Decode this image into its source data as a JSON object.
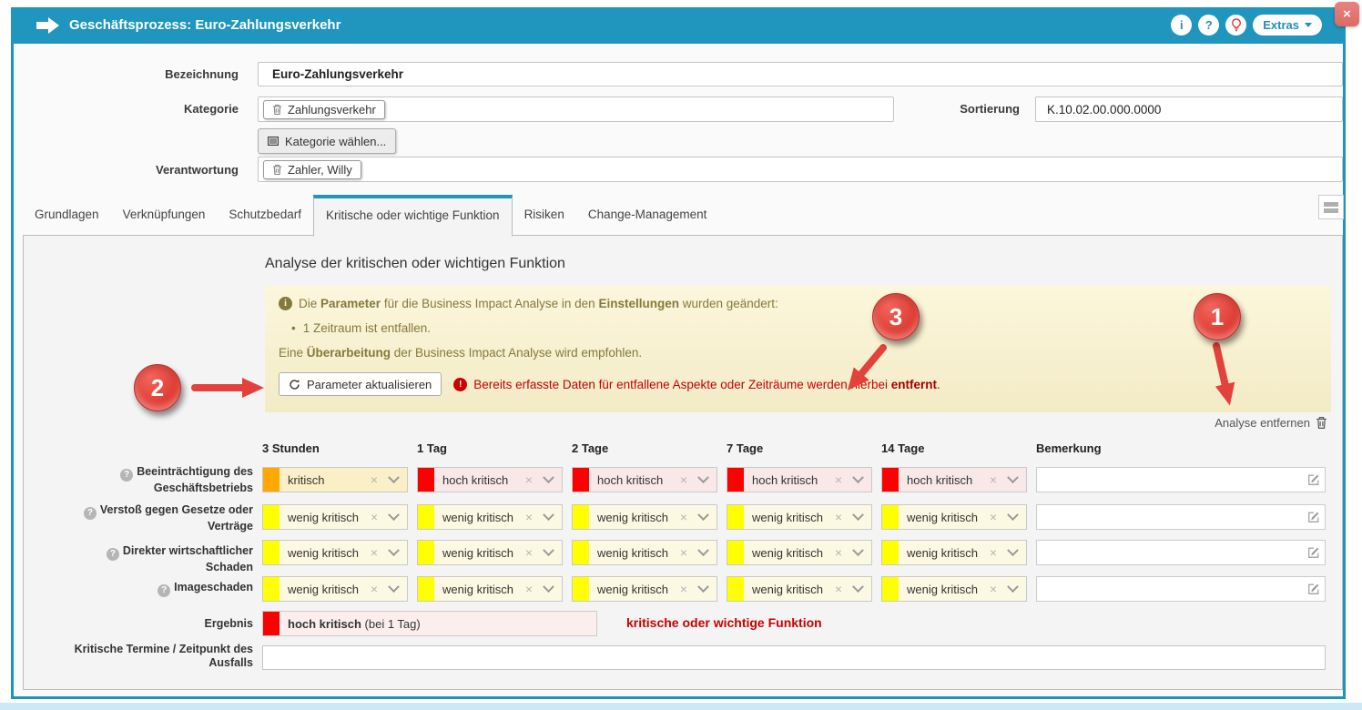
{
  "icons": {
    "info_glyph": "i",
    "question_glyph": "?",
    "warning_glyph": "!",
    "clear_glyph": "×"
  },
  "titlebar": {
    "title": "Geschäftsprozess: Euro-Zahlungsverkehr",
    "info_label": "i",
    "help_label": "?",
    "extras_label": "Extras",
    "close_label": "×"
  },
  "form": {
    "bezeichnung_label": "Bezeichnung",
    "bezeichnung_value": "Euro-Zahlungsverkehr",
    "kategorie_label": "Kategorie",
    "kategorie_tag": "Zahlungsverkehr",
    "kategorie_choose_label": "Kategorie wählen...",
    "sortierung_label": "Sortierung",
    "sortierung_value": "K.10.02.00.000.0000",
    "verantwortung_label": "Verantwortung",
    "verantwortung_tag": "Zahler, Willy"
  },
  "tabs": [
    {
      "label": "Grundlagen",
      "active": false
    },
    {
      "label": "Verknüpfungen",
      "active": false
    },
    {
      "label": "Schutzbedarf",
      "active": false
    },
    {
      "label": "Kritische oder wichtige Funktion",
      "active": true
    },
    {
      "label": "Risiken",
      "active": false
    },
    {
      "label": "Change-Management",
      "active": false
    }
  ],
  "analysis": {
    "section_title": "Analyse der kritischen oder wichtigen Funktion",
    "notice": {
      "intro": [
        {
          "t": "Die ",
          "b": false
        },
        {
          "t": "Parameter",
          "b": true
        },
        {
          "t": " für die Business Impact Analyse in den ",
          "b": false
        },
        {
          "t": "Einstellungen",
          "b": true
        },
        {
          "t": " wurden geändert:",
          "b": false
        }
      ],
      "bullet_item": "1 Zeitraum ist entfallen.",
      "recommendation": [
        {
          "t": "Eine ",
          "b": false
        },
        {
          "t": "Überarbeitung",
          "b": true
        },
        {
          "t": " der Business Impact Analyse wird empfohlen.",
          "b": false
        }
      ],
      "update_button_label": "Parameter aktualisieren",
      "warning": [
        {
          "t": "Bereits erfasste Daten für entfallene Aspekte oder Zeiträume werden hierbei ",
          "b": false
        },
        {
          "t": "entfernt",
          "b": true
        },
        {
          "t": ".",
          "b": false
        }
      ]
    },
    "remove_link_label": "Analyse entfernen",
    "annotations": {
      "one": "1",
      "two": "2",
      "three": "3"
    },
    "table": {
      "columns": [
        "3 Stunden",
        "1 Tag",
        "2 Tage",
        "7 Tage",
        "14 Tage",
        "Bemerkung"
      ],
      "rows": [
        {
          "label": "Beeinträchtigung des Geschäftsbetriebs",
          "cells": [
            {
              "value": "kritisch",
              "level": "orange"
            },
            {
              "value": "hoch kritisch",
              "level": "red"
            },
            {
              "value": "hoch kritisch",
              "level": "red"
            },
            {
              "value": "hoch kritisch",
              "level": "red"
            },
            {
              "value": "hoch kritisch",
              "level": "red"
            }
          ]
        },
        {
          "label": "Verstoß gegen Gesetze oder Verträge",
          "cells": [
            {
              "value": "wenig kritisch",
              "level": "yellow"
            },
            {
              "value": "wenig kritisch",
              "level": "yellow"
            },
            {
              "value": "wenig kritisch",
              "level": "yellow"
            },
            {
              "value": "wenig kritisch",
              "level": "yellow"
            },
            {
              "value": "wenig kritisch",
              "level": "yellow"
            }
          ]
        },
        {
          "label": "Direkter wirtschaftlicher Schaden",
          "cells": [
            {
              "value": "wenig kritisch",
              "level": "yellow"
            },
            {
              "value": "wenig kritisch",
              "level": "yellow"
            },
            {
              "value": "wenig kritisch",
              "level": "yellow"
            },
            {
              "value": "wenig kritisch",
              "level": "yellow"
            },
            {
              "value": "wenig kritisch",
              "level": "yellow"
            }
          ]
        },
        {
          "label": "Imageschaden",
          "cells": [
            {
              "value": "wenig kritisch",
              "level": "yellow"
            },
            {
              "value": "wenig kritisch",
              "level": "yellow"
            },
            {
              "value": "wenig kritisch",
              "level": "yellow"
            },
            {
              "value": "wenig kritisch",
              "level": "yellow"
            },
            {
              "value": "wenig kritisch",
              "level": "yellow"
            }
          ]
        }
      ],
      "result_label": "Ergebnis",
      "result_value": "hoch kritisch",
      "result_suffix": " (bei 1 Tag)",
      "result_level": "red",
      "classification": "kritische oder wichtige Funktion",
      "termine_label": "Kritische Termine / Zeitpunkt des Ausfalls"
    }
  },
  "colors": {
    "accent": "#2095be",
    "danger_text": "#cb0000",
    "notice_text": "#847a38",
    "result_bg": "#fdeeee",
    "levels": {
      "orange": {
        "strip": "#ffa800",
        "bg": "#faf0c8"
      },
      "red": {
        "strip": "#fe0000",
        "bg": "#f9e8e8"
      },
      "yellow": {
        "strip": "#ffff00",
        "bg": "#fcf9e3"
      }
    }
  }
}
